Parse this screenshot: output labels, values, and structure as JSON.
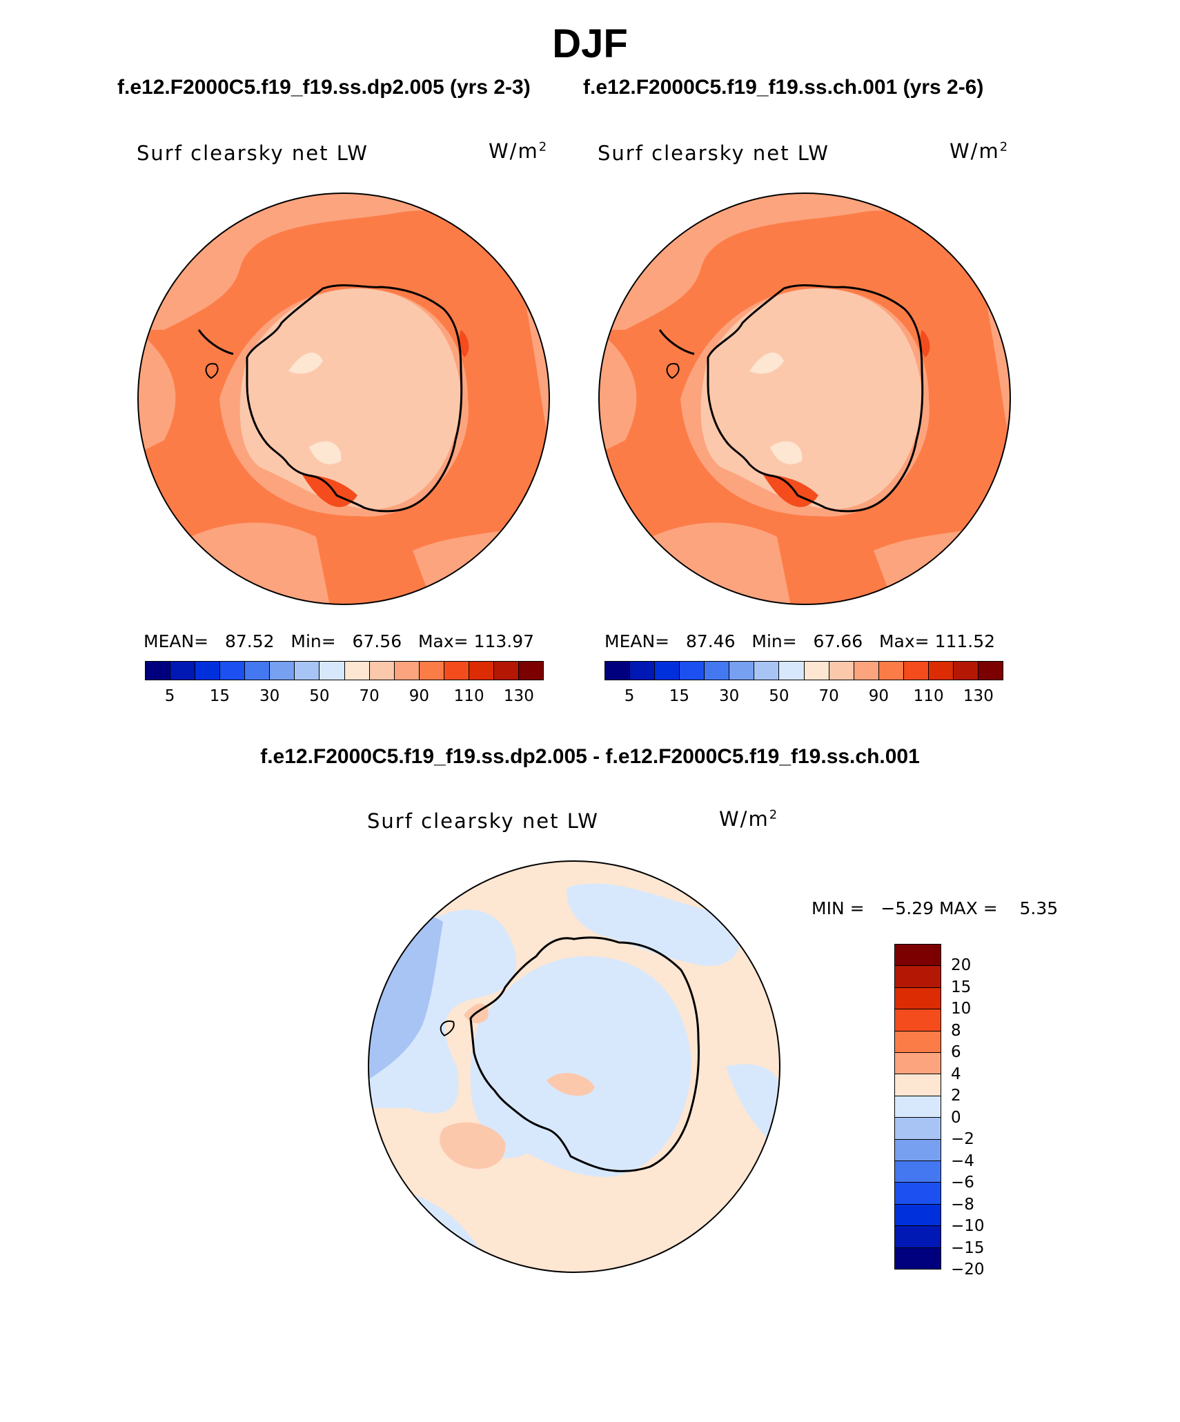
{
  "season": "DJF",
  "case_left": "f.e12.F2000C5.f19_f19.ss.dp2.005 (yrs 2-3)",
  "case_right": "f.e12.F2000C5.f19_f19.ss.ch.001 (yrs 2-6)",
  "diff_title": "f.e12.F2000C5.f19_f19.ss.dp2.005 - f.e12.F2000C5.f19_f19.ss.ch.001",
  "panel_label": "Surf clearsky net LW",
  "unit_base": "W/m",
  "unit_exp": "2",
  "left": {
    "mean_label": "MEAN=",
    "mean": "87.52",
    "min_label": "Min=",
    "min": "67.56",
    "max_label": "Max=",
    "max": "113.97"
  },
  "right": {
    "mean_label": "MEAN=",
    "mean": "87.46",
    "min_label": "Min=",
    "min": "67.66",
    "max_label": "Max=",
    "max": "111.52"
  },
  "diff": {
    "min_label": "MIN =",
    "min": "−5.29",
    "max_label": "MAX =",
    "max": "5.35"
  },
  "colorbar_main": {
    "colors": [
      "#00007f",
      "#0018b4",
      "#0030dc",
      "#1c50f0",
      "#4478f0",
      "#78a0f0",
      "#a8c4f4",
      "#d8e8fc",
      "#fde6d2",
      "#fcc8ac",
      "#fca47e",
      "#fc7c48",
      "#f44c1c",
      "#dc2c04",
      "#b41804",
      "#7c0000"
    ],
    "ticks": [
      "5",
      "15",
      "30",
      "50",
      "70",
      "90",
      "110",
      "130"
    ]
  },
  "colorbar_diff": {
    "colors": [
      "#7c0000",
      "#b41804",
      "#dc2c04",
      "#f44c1c",
      "#fc7c48",
      "#fca47e",
      "#fde6d2",
      "#d8e8fc",
      "#a8c4f4",
      "#78a0f0",
      "#4478f0",
      "#1c50f0",
      "#0030dc",
      "#0018b4",
      "#00007f"
    ],
    "ticks": [
      "20",
      "15",
      "10",
      "8",
      "6",
      "4",
      "2",
      "0",
      "−2",
      "−4",
      "−6",
      "−8",
      "−10",
      "−15",
      "−20"
    ]
  },
  "map_colors": {
    "ocean_main": "#fc7c48",
    "mid": "#fca47e",
    "land_main": "#fcc8ac",
    "land_light": "#fde6d2",
    "hot": "#f44c1c",
    "diff_pos": "#fde6d2",
    "diff_neg": "#d8e8fc",
    "diff_neg2": "#a8c4f4",
    "diff_pos2": "#fcc8ac"
  }
}
